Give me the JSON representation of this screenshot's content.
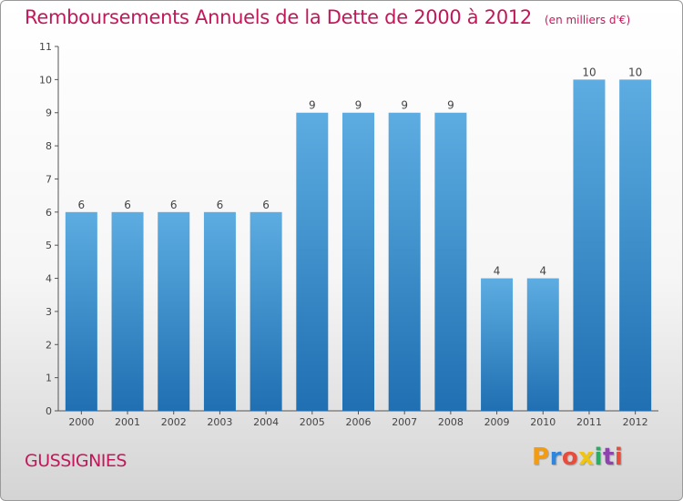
{
  "title": "Remboursements Annuels de la Dette de 2000 à 2012",
  "unit_label": "(en milliers d'€)",
  "footer": {
    "commune": "GUSSIGNIES",
    "logo_text": "Proxiti",
    "logo_colors": [
      "#f39c12",
      "#2e86de",
      "#e74c3c",
      "#f1c40f",
      "#27ae60",
      "#8e44ad",
      "#e74c3c"
    ]
  },
  "chart_data": {
    "type": "bar",
    "categories": [
      "2000",
      "2001",
      "2002",
      "2003",
      "2004",
      "2005",
      "2006",
      "2007",
      "2008",
      "2009",
      "2010",
      "2011",
      "2012"
    ],
    "values": [
      6,
      6,
      6,
      6,
      6,
      9,
      9,
      9,
      9,
      4,
      4,
      10,
      10
    ],
    "data_labels": [
      "6",
      "6",
      "6",
      "6",
      "6",
      "9",
      "9",
      "9",
      "9",
      "4",
      "4",
      "10",
      "10"
    ],
    "y_ticks": [
      "0",
      "1",
      "2",
      "3",
      "4",
      "5",
      "6",
      "7",
      "8",
      "9",
      "10",
      "11"
    ],
    "ylim": [
      0,
      11
    ],
    "grid": false,
    "colors": {
      "bar_light": "#5dade2",
      "bar_dark": "#1f6fb2",
      "axis": "#555555",
      "text": "#444444"
    }
  }
}
